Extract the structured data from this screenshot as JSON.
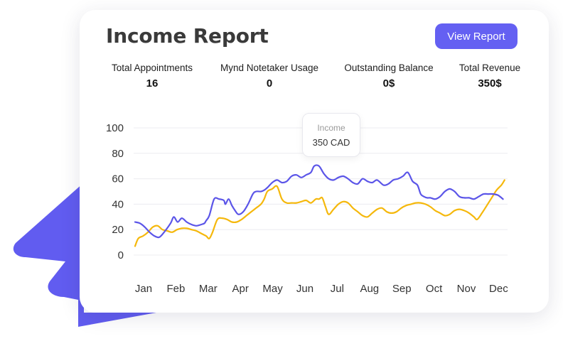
{
  "report": {
    "title": "Income Report",
    "view_button": "View Report"
  },
  "stats": [
    {
      "label": "Total Appointments",
      "value": "16"
    },
    {
      "label": "Mynd Notetaker Usage",
      "value": "0"
    },
    {
      "label": "Outstanding Balance",
      "value": "0$"
    },
    {
      "label": "Total Revenue",
      "value": "350$"
    }
  ],
  "tooltip": {
    "label": "Income",
    "value": "350 CAD"
  },
  "colors": {
    "accent": "#6460f2",
    "purple_series": "#5b55e8",
    "yellow_series": "#f5b80c",
    "decoration": "#615cf0"
  },
  "chart_data": {
    "type": "line",
    "x_labels": [
      "Jan",
      "Feb",
      "Mar",
      "Apr",
      "May",
      "Jun",
      "Jul",
      "Aug",
      "Sep",
      "Oct",
      "Nov",
      "Dec"
    ],
    "y_ticks": [
      0,
      20,
      40,
      60,
      80,
      100
    ],
    "ylim": [
      0,
      100
    ],
    "grid": true,
    "series": [
      {
        "color": "#5b55e8",
        "x": [
          0,
          0.15,
          0.3,
          0.45,
          0.6,
          0.75,
          0.9,
          1.1,
          1.2,
          1.32,
          1.45,
          1.6,
          1.75,
          1.9,
          2.05,
          2.15,
          2.2,
          2.3,
          2.45,
          2.6,
          2.75,
          2.8,
          2.9,
          3.0,
          3.1,
          3.2,
          3.35,
          3.5,
          3.65,
          3.75,
          3.9,
          4.0,
          4.1,
          4.25,
          4.4,
          4.55,
          4.7,
          4.85,
          5.0,
          5.15,
          5.3,
          5.45,
          5.55,
          5.7,
          5.85,
          6.0,
          6.15,
          6.3,
          6.45,
          6.6,
          6.75,
          6.9,
          7.05,
          7.2,
          7.35,
          7.5,
          7.7,
          7.85,
          8.0,
          8.15,
          8.3,
          8.45,
          8.6,
          8.75,
          8.85,
          8.95,
          9.05,
          9.15,
          9.3,
          9.45,
          9.6,
          9.75,
          9.9,
          10.05,
          10.2,
          10.35,
          10.5,
          10.65,
          10.8,
          10.95,
          11.1,
          11.25,
          11.4
        ],
        "y": [
          26,
          25,
          22,
          18,
          15,
          14,
          18,
          25,
          30,
          26,
          29,
          26,
          24,
          23,
          24,
          25,
          27,
          31,
          44,
          44,
          43,
          40,
          44,
          39,
          35,
          32,
          34,
          40,
          48,
          50,
          50,
          51,
          53,
          57,
          59,
          57,
          58,
          62,
          63,
          61,
          63,
          65,
          70,
          70,
          64,
          60,
          59,
          61,
          62,
          60,
          57,
          56,
          60,
          58,
          57,
          59,
          55,
          56,
          59,
          60,
          62,
          65,
          58,
          55,
          48,
          46,
          45,
          45,
          44,
          46,
          50,
          52,
          50,
          46,
          45,
          45,
          44,
          46,
          48,
          48,
          48,
          47,
          44
        ]
      },
      {
        "color": "#f5b80c",
        "x": [
          0,
          0.1,
          0.25,
          0.4,
          0.55,
          0.7,
          0.85,
          1.0,
          1.15,
          1.3,
          1.45,
          1.6,
          1.75,
          1.9,
          2.05,
          2.2,
          2.3,
          2.4,
          2.55,
          2.7,
          2.85,
          3.0,
          3.15,
          3.3,
          3.45,
          3.6,
          3.75,
          3.9,
          4.0,
          4.1,
          4.25,
          4.4,
          4.55,
          4.7,
          4.85,
          5.0,
          5.15,
          5.3,
          5.45,
          5.6,
          5.7,
          5.8,
          5.9,
          6.0,
          6.15,
          6.3,
          6.45,
          6.6,
          6.75,
          6.9,
          7.05,
          7.2,
          7.35,
          7.5,
          7.65,
          7.8,
          7.95,
          8.1,
          8.25,
          8.4,
          8.55,
          8.7,
          8.85,
          9.0,
          9.15,
          9.3,
          9.45,
          9.6,
          9.75,
          9.9,
          10.05,
          10.2,
          10.35,
          10.5,
          10.6,
          10.75,
          10.9,
          11.05,
          11.2,
          11.35,
          11.45
        ],
        "y": [
          7,
          13,
          15,
          18,
          22,
          23,
          20,
          19,
          18,
          20,
          21,
          21,
          20,
          19,
          17,
          15,
          13,
          18,
          28,
          29,
          28,
          26,
          26,
          28,
          31,
          34,
          37,
          40,
          44,
          50,
          52,
          54,
          44,
          41,
          41,
          41,
          42,
          43,
          41,
          44,
          44,
          45,
          38,
          32,
          36,
          40,
          42,
          41,
          37,
          34,
          31,
          30,
          33,
          36,
          37,
          34,
          33,
          34,
          37,
          39,
          40,
          41,
          41,
          40,
          38,
          35,
          33,
          31,
          32,
          35,
          36,
          35,
          33,
          30,
          28,
          33,
          39,
          45,
          51,
          55,
          59
        ]
      }
    ]
  }
}
